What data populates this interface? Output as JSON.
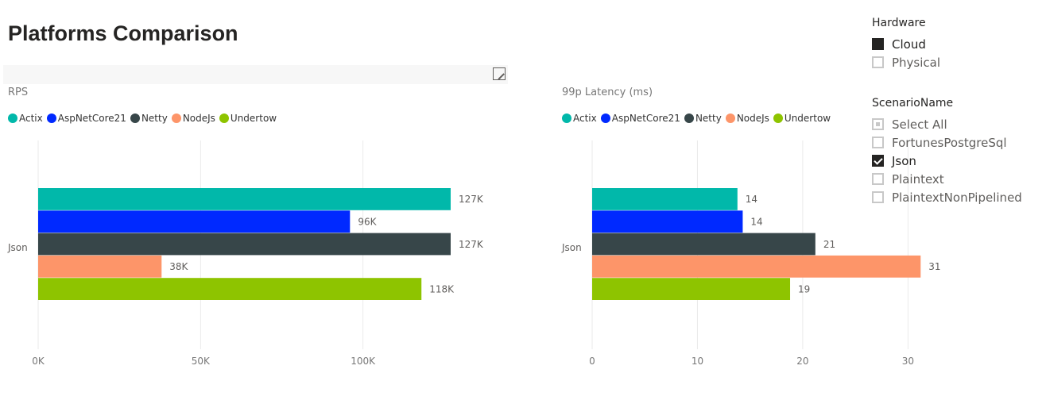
{
  "report": {
    "title": "Platforms Comparison"
  },
  "legend_series": [
    {
      "name": "Actix",
      "color": "#01b8aa"
    },
    {
      "name": "AspNetCore21",
      "color": "#0029ff"
    },
    {
      "name": "Netty",
      "color": "#374649"
    },
    {
      "name": "NodeJs",
      "color": "#fd9569"
    },
    {
      "name": "Undertow",
      "color": "#8ec400"
    }
  ],
  "chart_data": [
    {
      "type": "bar",
      "orientation": "horizontal",
      "title": "RPS",
      "categories": [
        "Json"
      ],
      "series": [
        {
          "name": "Actix",
          "values": [
            127000
          ],
          "label": "127K"
        },
        {
          "name": "AspNetCore21",
          "values": [
            96000
          ],
          "label": "96K"
        },
        {
          "name": "Netty",
          "values": [
            127000
          ],
          "label": "127K"
        },
        {
          "name": "NodeJs",
          "values": [
            38000
          ],
          "label": "38K"
        },
        {
          "name": "Undertow",
          "values": [
            118000
          ],
          "label": "118K"
        }
      ],
      "xticks": [
        0,
        50000,
        100000
      ],
      "xtick_labels": [
        "0K",
        "50K",
        "100K"
      ],
      "xlim": [
        0,
        150000
      ],
      "grid": true,
      "legend": "top-left"
    },
    {
      "type": "bar",
      "orientation": "horizontal",
      "title": "99p Latency (ms)",
      "categories": [
        "Json"
      ],
      "series": [
        {
          "name": "Actix",
          "values": [
            13.8
          ],
          "label": "14"
        },
        {
          "name": "AspNetCore21",
          "values": [
            14.3
          ],
          "label": "14"
        },
        {
          "name": "Netty",
          "values": [
            21.2
          ],
          "label": "21"
        },
        {
          "name": "NodeJs",
          "values": [
            31.2
          ],
          "label": "31"
        },
        {
          "name": "Undertow",
          "values": [
            18.8
          ],
          "label": "19"
        }
      ],
      "xticks": [
        0,
        10,
        20,
        30
      ],
      "xtick_labels": [
        "0",
        "10",
        "20",
        "30"
      ],
      "xlim": [
        0,
        34.5
      ],
      "grid": true,
      "legend": "top-left"
    }
  ],
  "slicers": {
    "hardware": {
      "header": "Hardware",
      "items": [
        {
          "label": "Cloud",
          "state": "filled"
        },
        {
          "label": "Physical",
          "state": "empty"
        }
      ]
    },
    "scenario": {
      "header": "ScenarioName",
      "items": [
        {
          "label": "Select All",
          "state": "partial"
        },
        {
          "label": "FortunesPostgreSql",
          "state": "empty"
        },
        {
          "label": "Json",
          "state": "checked"
        },
        {
          "label": "Plaintext",
          "state": "empty"
        },
        {
          "label": "PlaintextNonPipelined",
          "state": "empty"
        }
      ]
    }
  }
}
